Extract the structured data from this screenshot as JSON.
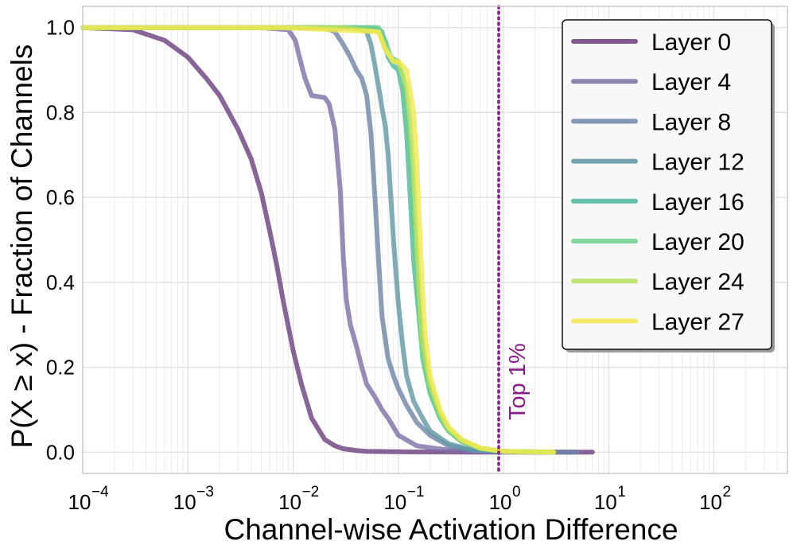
{
  "chart_data": {
    "type": "line",
    "title": "",
    "xlabel": "Channel-wise Activation Difference",
    "ylabel": "P(X ≥ x) - Fraction of Channels",
    "xscale": "log",
    "xlim": [
      0.0001,
      500
    ],
    "ylim": [
      -0.05,
      1.05
    ],
    "grid": true,
    "legend_position": "top-right",
    "x_ticks": [
      {
        "value": 0.0001,
        "base": "10",
        "exp": "−4"
      },
      {
        "value": 0.001,
        "base": "10",
        "exp": "−3"
      },
      {
        "value": 0.01,
        "base": "10",
        "exp": "−2"
      },
      {
        "value": 0.1,
        "base": "10",
        "exp": "−1"
      },
      {
        "value": 1,
        "base": "10",
        "exp": "0"
      },
      {
        "value": 10,
        "base": "10",
        "exp": "1"
      },
      {
        "value": 100,
        "base": "10",
        "exp": "2"
      }
    ],
    "y_ticks": [
      {
        "value": 0.0,
        "label": "0.0"
      },
      {
        "value": 0.2,
        "label": "0.2"
      },
      {
        "value": 0.4,
        "label": "0.4"
      },
      {
        "value": 0.6,
        "label": "0.6"
      },
      {
        "value": 0.8,
        "label": "0.8"
      },
      {
        "value": 1.0,
        "label": "1.0"
      }
    ],
    "annotation": {
      "type": "vline",
      "x": 0.9,
      "label": "Top 1%",
      "color": "#8b1a8b"
    },
    "series": [
      {
        "name": "Layer 0",
        "color": "#6a3d7e",
        "x": [
          0.0001,
          0.0003,
          0.0006,
          0.001,
          0.0015,
          0.002,
          0.003,
          0.004,
          0.005,
          0.006,
          0.007,
          0.008,
          0.01,
          0.012,
          0.015,
          0.02,
          0.025,
          0.03,
          0.04,
          0.05,
          0.1,
          0.5,
          2,
          7
        ],
        "y": [
          1.0,
          0.995,
          0.97,
          0.93,
          0.88,
          0.84,
          0.76,
          0.69,
          0.61,
          0.52,
          0.44,
          0.36,
          0.24,
          0.16,
          0.08,
          0.03,
          0.015,
          0.008,
          0.004,
          0.002,
          0.001,
          0.0,
          0.0,
          0.0
        ]
      },
      {
        "name": "Layer 4",
        "color": "#7d6ea8",
        "x": [
          0.0001,
          0.005,
          0.009,
          0.0105,
          0.0115,
          0.013,
          0.015,
          0.02,
          0.022,
          0.025,
          0.028,
          0.03,
          0.032,
          0.035,
          0.04,
          0.045,
          0.05,
          0.06,
          0.07,
          0.08,
          0.1,
          0.15,
          0.3,
          1,
          5
        ],
        "y": [
          1.0,
          1.0,
          0.995,
          0.97,
          0.93,
          0.88,
          0.84,
          0.835,
          0.82,
          0.76,
          0.62,
          0.46,
          0.36,
          0.3,
          0.25,
          0.2,
          0.16,
          0.13,
          0.1,
          0.08,
          0.04,
          0.015,
          0.005,
          0.001,
          0.0
        ]
      },
      {
        "name": "Layer 8",
        "color": "#6d84a6",
        "x": [
          0.0001,
          0.02,
          0.025,
          0.03,
          0.035,
          0.04,
          0.045,
          0.05,
          0.055,
          0.06,
          0.065,
          0.07,
          0.08,
          0.09,
          0.1,
          0.12,
          0.15,
          0.2,
          0.3,
          0.5,
          1,
          5
        ],
        "y": [
          1.0,
          1.0,
          0.99,
          0.96,
          0.93,
          0.9,
          0.88,
          0.84,
          0.75,
          0.6,
          0.45,
          0.32,
          0.22,
          0.18,
          0.15,
          0.11,
          0.07,
          0.04,
          0.015,
          0.005,
          0.001,
          0.0
        ]
      },
      {
        "name": "Layer 12",
        "color": "#5f97a5",
        "x": [
          0.0001,
          0.04,
          0.05,
          0.055,
          0.06,
          0.065,
          0.07,
          0.075,
          0.08,
          0.085,
          0.09,
          0.1,
          0.11,
          0.12,
          0.14,
          0.17,
          0.2,
          0.3,
          0.5,
          1,
          3
        ],
        "y": [
          1.0,
          1.0,
          0.99,
          0.96,
          0.91,
          0.86,
          0.81,
          0.77,
          0.7,
          0.6,
          0.5,
          0.35,
          0.25,
          0.18,
          0.12,
          0.08,
          0.05,
          0.02,
          0.005,
          0.001,
          0.0
        ]
      },
      {
        "name": "Layer 16",
        "color": "#4fb5a0",
        "x": [
          0.0001,
          0.06,
          0.07,
          0.075,
          0.08,
          0.09,
          0.1,
          0.11,
          0.12,
          0.13,
          0.14,
          0.16,
          0.18,
          0.2,
          0.25,
          0.3,
          0.4,
          0.6,
          1,
          3
        ],
        "y": [
          1.0,
          1.0,
          0.99,
          0.96,
          0.93,
          0.91,
          0.9,
          0.85,
          0.75,
          0.6,
          0.45,
          0.3,
          0.2,
          0.14,
          0.08,
          0.05,
          0.025,
          0.008,
          0.002,
          0.0
        ]
      },
      {
        "name": "Layer 20",
        "color": "#6ccf8c",
        "x": [
          0.0001,
          0.065,
          0.075,
          0.085,
          0.1,
          0.11,
          0.12,
          0.13,
          0.14,
          0.15,
          0.16,
          0.17,
          0.2,
          0.25,
          0.3,
          0.4,
          0.6,
          1,
          3
        ],
        "y": [
          1.0,
          1.0,
          0.97,
          0.93,
          0.92,
          0.88,
          0.8,
          0.7,
          0.55,
          0.42,
          0.3,
          0.22,
          0.14,
          0.08,
          0.05,
          0.025,
          0.008,
          0.002,
          0.0
        ]
      },
      {
        "name": "Layer 24",
        "color": "#b8e15e",
        "x": [
          0.0001,
          0.007,
          0.01,
          0.03,
          0.065,
          0.075,
          0.09,
          0.1,
          0.12,
          0.13,
          0.14,
          0.15,
          0.16,
          0.17,
          0.2,
          0.25,
          0.3,
          0.4,
          0.6,
          1,
          3
        ],
        "y": [
          1.0,
          1.0,
          1.0,
          1.0,
          0.99,
          0.95,
          0.92,
          0.92,
          0.86,
          0.78,
          0.66,
          0.5,
          0.36,
          0.26,
          0.16,
          0.09,
          0.055,
          0.028,
          0.01,
          0.002,
          0.0
        ]
      },
      {
        "name": "Layer 27",
        "color": "#f2e94e",
        "x": [
          0.0001,
          0.008,
          0.065,
          0.075,
          0.09,
          0.1,
          0.12,
          0.14,
          0.15,
          0.16,
          0.17,
          0.18,
          0.2,
          0.25,
          0.3,
          0.4,
          0.6,
          1,
          3
        ],
        "y": [
          1.0,
          1.0,
          0.99,
          0.95,
          0.92,
          0.92,
          0.9,
          0.8,
          0.68,
          0.52,
          0.38,
          0.28,
          0.18,
          0.1,
          0.06,
          0.03,
          0.01,
          0.002,
          0.0
        ]
      }
    ]
  }
}
